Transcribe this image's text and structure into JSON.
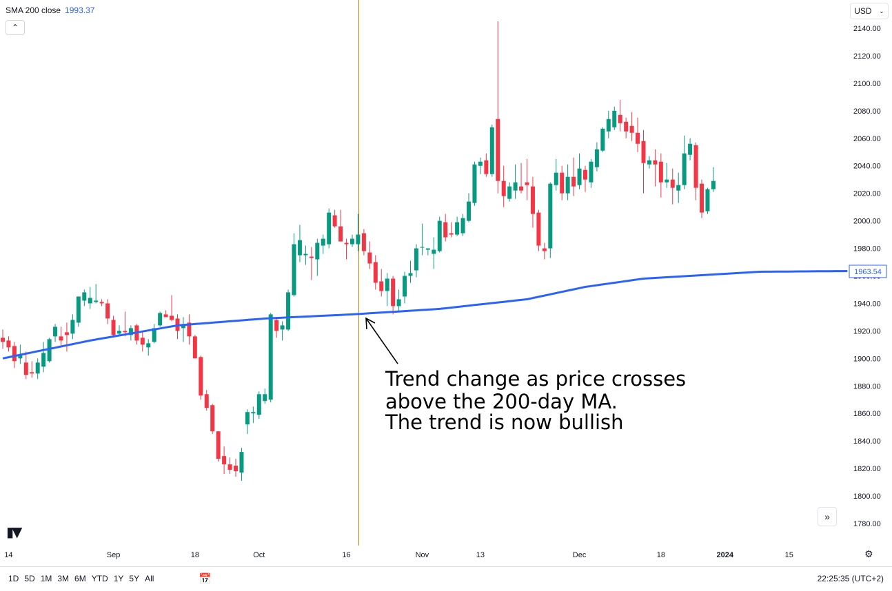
{
  "indicator": {
    "name": "SMA 200 close",
    "value": "1993.37"
  },
  "currency": "USD",
  "annotation": {
    "lines": [
      "Trend change as price crosses",
      "above the 200-day MA.",
      "The trend is now bullish"
    ]
  },
  "sma_label": "1963.54",
  "time_ranges": [
    "1D",
    "5D",
    "1M",
    "3M",
    "6M",
    "YTD",
    "1Y",
    "5Y",
    "All"
  ],
  "clock": "22:25:35 (UTC+2)",
  "colors": {
    "up": "#089981",
    "down": "#f23645",
    "sma": "#2962ff",
    "cursor": "#b8860b"
  },
  "icons": [
    "chevron-up-icon",
    "chevron-down-icon",
    "double-chevron-right-icon",
    "calendar-icon",
    "gear-icon",
    "tradingview-logo-icon"
  ],
  "chart_data": {
    "type": "candlestick",
    "ylim": [
      1770,
      2150
    ],
    "yticks": [
      1780,
      1800,
      1820,
      1840,
      1860,
      1880,
      1900,
      1920,
      1940,
      1960,
      1980,
      2000,
      2020,
      2040,
      2060,
      2080,
      2100,
      2120,
      2140
    ],
    "x_tick_labels": [
      {
        "label": "14",
        "bar": 1
      },
      {
        "label": "Sep",
        "bar": 19
      },
      {
        "label": "18",
        "bar": 33
      },
      {
        "label": "Oct",
        "bar": 44
      },
      {
        "label": "16",
        "bar": 59
      },
      {
        "label": "Nov",
        "bar": 72
      },
      {
        "label": "13",
        "bar": 82
      },
      {
        "label": "Dec",
        "bar": 99
      },
      {
        "label": "18",
        "bar": 113
      },
      {
        "label": "2024",
        "bar": 124
      },
      {
        "label": "15",
        "bar": 135
      }
    ],
    "candles": [
      {
        "o": 1915,
        "h": 1921,
        "l": 1907,
        "c": 1912
      },
      {
        "o": 1913,
        "h": 1916,
        "l": 1905,
        "c": 1908
      },
      {
        "o": 1909,
        "h": 1912,
        "l": 1893,
        "c": 1898
      },
      {
        "o": 1900,
        "h": 1910,
        "l": 1896,
        "c": 1903
      },
      {
        "o": 1897,
        "h": 1905,
        "l": 1885,
        "c": 1888
      },
      {
        "o": 1890,
        "h": 1898,
        "l": 1886,
        "c": 1889
      },
      {
        "o": 1889,
        "h": 1900,
        "l": 1885,
        "c": 1897
      },
      {
        "o": 1894,
        "h": 1912,
        "l": 1890,
        "c": 1904
      },
      {
        "o": 1898,
        "h": 1915,
        "l": 1897,
        "c": 1914
      },
      {
        "o": 1916,
        "h": 1925,
        "l": 1912,
        "c": 1923
      },
      {
        "o": 1916,
        "h": 1923,
        "l": 1908,
        "c": 1913
      },
      {
        "o": 1919,
        "h": 1926,
        "l": 1905,
        "c": 1917
      },
      {
        "o": 1918,
        "h": 1932,
        "l": 1914,
        "c": 1928
      },
      {
        "o": 1926,
        "h": 1945,
        "l": 1923,
        "c": 1945
      },
      {
        "o": 1942,
        "h": 1950,
        "l": 1938,
        "c": 1948
      },
      {
        "o": 1940,
        "h": 1952,
        "l": 1936,
        "c": 1944
      },
      {
        "o": 1941,
        "h": 1954,
        "l": 1940,
        "c": 1942
      },
      {
        "o": 1941,
        "h": 1943,
        "l": 1938,
        "c": 1940
      },
      {
        "o": 1940,
        "h": 1943,
        "l": 1925,
        "c": 1929
      },
      {
        "o": 1928,
        "h": 1931,
        "l": 1915,
        "c": 1917
      },
      {
        "o": 1918,
        "h": 1924,
        "l": 1916,
        "c": 1920
      },
      {
        "o": 1920,
        "h": 1934,
        "l": 1916,
        "c": 1919
      },
      {
        "o": 1917,
        "h": 1924,
        "l": 1913,
        "c": 1922
      },
      {
        "o": 1924,
        "h": 1925,
        "l": 1910,
        "c": 1913
      },
      {
        "o": 1915,
        "h": 1919,
        "l": 1905,
        "c": 1910
      },
      {
        "o": 1908,
        "h": 1914,
        "l": 1902,
        "c": 1911
      },
      {
        "o": 1912,
        "h": 1925,
        "l": 1911,
        "c": 1922
      },
      {
        "o": 1924,
        "h": 1934,
        "l": 1923,
        "c": 1933
      },
      {
        "o": 1932,
        "h": 1935,
        "l": 1930,
        "c": 1930
      },
      {
        "o": 1931,
        "h": 1946,
        "l": 1927,
        "c": 1928
      },
      {
        "o": 1929,
        "h": 1932,
        "l": 1914,
        "c": 1920
      },
      {
        "o": 1922,
        "h": 1930,
        "l": 1912,
        "c": 1925
      },
      {
        "o": 1926,
        "h": 1932,
        "l": 1910,
        "c": 1916
      },
      {
        "o": 1916,
        "h": 1917,
        "l": 1900,
        "c": 1900
      },
      {
        "o": 1901,
        "h": 1902,
        "l": 1870,
        "c": 1873
      },
      {
        "o": 1874,
        "h": 1877,
        "l": 1862,
        "c": 1864
      },
      {
        "o": 1866,
        "h": 1867,
        "l": 1845,
        "c": 1847
      },
      {
        "o": 1847,
        "h": 1847,
        "l": 1825,
        "c": 1827
      },
      {
        "o": 1829,
        "h": 1836,
        "l": 1816,
        "c": 1823
      },
      {
        "o": 1823,
        "h": 1828,
        "l": 1816,
        "c": 1819
      },
      {
        "o": 1822,
        "h": 1827,
        "l": 1814,
        "c": 1818
      },
      {
        "o": 1817,
        "h": 1835,
        "l": 1811,
        "c": 1832
      },
      {
        "o": 1852,
        "h": 1863,
        "l": 1845,
        "c": 1861
      },
      {
        "o": 1860,
        "h": 1865,
        "l": 1853,
        "c": 1861
      },
      {
        "o": 1859,
        "h": 1876,
        "l": 1856,
        "c": 1874
      },
      {
        "o": 1869,
        "h": 1878,
        "l": 1867,
        "c": 1874
      },
      {
        "o": 1870,
        "h": 1933,
        "l": 1868,
        "c": 1932
      },
      {
        "o": 1928,
        "h": 1930,
        "l": 1915,
        "c": 1920
      },
      {
        "o": 1921,
        "h": 1927,
        "l": 1913,
        "c": 1924
      },
      {
        "o": 1921,
        "h": 1950,
        "l": 1920,
        "c": 1948
      },
      {
        "o": 1946,
        "h": 1991,
        "l": 1945,
        "c": 1983
      },
      {
        "o": 1975,
        "h": 1997,
        "l": 1970,
        "c": 1986
      },
      {
        "o": 1975,
        "h": 1982,
        "l": 1968,
        "c": 1976
      },
      {
        "o": 1974,
        "h": 1981,
        "l": 1957,
        "c": 1973
      },
      {
        "o": 1972,
        "h": 1987,
        "l": 1960,
        "c": 1984
      },
      {
        "o": 1982,
        "h": 1990,
        "l": 1976,
        "c": 1987
      },
      {
        "o": 1983,
        "h": 2009,
        "l": 1980,
        "c": 2006
      },
      {
        "o": 2004,
        "h": 2008,
        "l": 1995,
        "c": 1996
      },
      {
        "o": 1996,
        "h": 2008,
        "l": 1985,
        "c": 1985
      },
      {
        "o": 1984,
        "h": 1987,
        "l": 1972,
        "c": 1983
      },
      {
        "o": 1983,
        "h": 1990,
        "l": 1981,
        "c": 1987
      },
      {
        "o": 1983,
        "h": 2005,
        "l": 1978,
        "c": 1990
      },
      {
        "o": 1991,
        "h": 1994,
        "l": 1975,
        "c": 1978
      },
      {
        "o": 1977,
        "h": 1985,
        "l": 1965,
        "c": 1969
      },
      {
        "o": 1970,
        "h": 1975,
        "l": 1950,
        "c": 1955
      },
      {
        "o": 1956,
        "h": 1965,
        "l": 1945,
        "c": 1949
      },
      {
        "o": 1949,
        "h": 1962,
        "l": 1938,
        "c": 1958
      },
      {
        "o": 1958,
        "h": 1960,
        "l": 1932,
        "c": 1938
      },
      {
        "o": 1938,
        "h": 1950,
        "l": 1934,
        "c": 1943
      },
      {
        "o": 1945,
        "h": 1963,
        "l": 1940,
        "c": 1960
      },
      {
        "o": 1960,
        "h": 1971,
        "l": 1955,
        "c": 1962
      },
      {
        "o": 1964,
        "h": 1983,
        "l": 1959,
        "c": 1980
      },
      {
        "o": 1981,
        "h": 1998,
        "l": 1975,
        "c": 1981
      },
      {
        "o": 1979,
        "h": 1980,
        "l": 1975,
        "c": 1980
      },
      {
        "o": 1976,
        "h": 1988,
        "l": 1965,
        "c": 1979
      },
      {
        "o": 1978,
        "h": 2003,
        "l": 1977,
        "c": 2000
      },
      {
        "o": 1999,
        "h": 2005,
        "l": 1985,
        "c": 1988
      },
      {
        "o": 1991,
        "h": 1999,
        "l": 1988,
        "c": 1990
      },
      {
        "o": 1990,
        "h": 2003,
        "l": 1989,
        "c": 1999
      },
      {
        "o": 1991,
        "h": 2005,
        "l": 1989,
        "c": 2002
      },
      {
        "o": 2000,
        "h": 2020,
        "l": 1999,
        "c": 2014
      },
      {
        "o": 2013,
        "h": 2043,
        "l": 2011,
        "c": 2041
      },
      {
        "o": 2040,
        "h": 2046,
        "l": 2034,
        "c": 2043
      },
      {
        "o": 2044,
        "h": 2049,
        "l": 2032,
        "c": 2034
      },
      {
        "o": 2034,
        "h": 2070,
        "l": 2032,
        "c": 2068
      },
      {
        "o": 2074,
        "h": 2145,
        "l": 2020,
        "c": 2029
      },
      {
        "o": 2029,
        "h": 2040,
        "l": 2010,
        "c": 2018
      },
      {
        "o": 2016,
        "h": 2028,
        "l": 2014,
        "c": 2025
      },
      {
        "o": 2022,
        "h": 2041,
        "l": 2016,
        "c": 2028
      },
      {
        "o": 2025,
        "h": 2042,
        "l": 2020,
        "c": 2022
      },
      {
        "o": 2028,
        "h": 2045,
        "l": 2015,
        "c": 2026
      },
      {
        "o": 2025,
        "h": 2032,
        "l": 1995,
        "c": 2005
      },
      {
        "o": 2006,
        "h": 2008,
        "l": 1978,
        "c": 1982
      },
      {
        "o": 1980,
        "h": 1984,
        "l": 1972,
        "c": 1978
      },
      {
        "o": 1980,
        "h": 2028,
        "l": 1973,
        "c": 2027
      },
      {
        "o": 2026,
        "h": 2045,
        "l": 2022,
        "c": 2035
      },
      {
        "o": 2035,
        "h": 2040,
        "l": 2015,
        "c": 2020
      },
      {
        "o": 2020,
        "h": 2041,
        "l": 2015,
        "c": 2032
      },
      {
        "o": 2032,
        "h": 2046,
        "l": 2018,
        "c": 2025
      },
      {
        "o": 2026,
        "h": 2049,
        "l": 2023,
        "c": 2038
      },
      {
        "o": 2037,
        "h": 2040,
        "l": 2021,
        "c": 2030
      },
      {
        "o": 2028,
        "h": 2045,
        "l": 2024,
        "c": 2043
      },
      {
        "o": 2039,
        "h": 2057,
        "l": 2036,
        "c": 2052
      },
      {
        "o": 2051,
        "h": 2068,
        "l": 2050,
        "c": 2067
      },
      {
        "o": 2065,
        "h": 2080,
        "l": 2060,
        "c": 2074
      },
      {
        "o": 2068,
        "h": 2083,
        "l": 2066,
        "c": 2080
      },
      {
        "o": 2077,
        "h": 2088,
        "l": 2065,
        "c": 2071
      },
      {
        "o": 2072,
        "h": 2075,
        "l": 2060,
        "c": 2065
      },
      {
        "o": 2069,
        "h": 2079,
        "l": 2058,
        "c": 2064
      },
      {
        "o": 2064,
        "h": 2075,
        "l": 2050,
        "c": 2056
      },
      {
        "o": 2058,
        "h": 2066,
        "l": 2020,
        "c": 2042
      },
      {
        "o": 2041,
        "h": 2047,
        "l": 2038,
        "c": 2044
      },
      {
        "o": 2044,
        "h": 2052,
        "l": 2025,
        "c": 2041
      },
      {
        "o": 2043,
        "h": 2049,
        "l": 2017,
        "c": 2028
      },
      {
        "o": 2028,
        "h": 2042,
        "l": 2024,
        "c": 2030
      },
      {
        "o": 2030,
        "h": 2038,
        "l": 2012,
        "c": 2024
      },
      {
        "o": 2022,
        "h": 2035,
        "l": 2013,
        "c": 2026
      },
      {
        "o": 2026,
        "h": 2062,
        "l": 2023,
        "c": 2049
      },
      {
        "o": 2048,
        "h": 2060,
        "l": 2044,
        "c": 2056
      },
      {
        "o": 2055,
        "h": 2057,
        "l": 2015,
        "c": 2024
      },
      {
        "o": 2027,
        "h": 2030,
        "l": 2002,
        "c": 2006
      },
      {
        "o": 2007,
        "h": 2024,
        "l": 2005,
        "c": 2023
      },
      {
        "o": 2023,
        "h": 2039,
        "l": 2021,
        "c": 2029
      }
    ],
    "sma": [
      [
        0,
        1900
      ],
      [
        15,
        1913
      ],
      [
        30,
        1924
      ],
      [
        45,
        1929
      ],
      [
        60,
        1932
      ],
      [
        75,
        1936
      ],
      [
        90,
        1943
      ],
      [
        100,
        1952
      ],
      [
        110,
        1958
      ],
      [
        118,
        1960
      ],
      [
        130,
        1963
      ],
      [
        145,
        1963.5
      ]
    ]
  }
}
